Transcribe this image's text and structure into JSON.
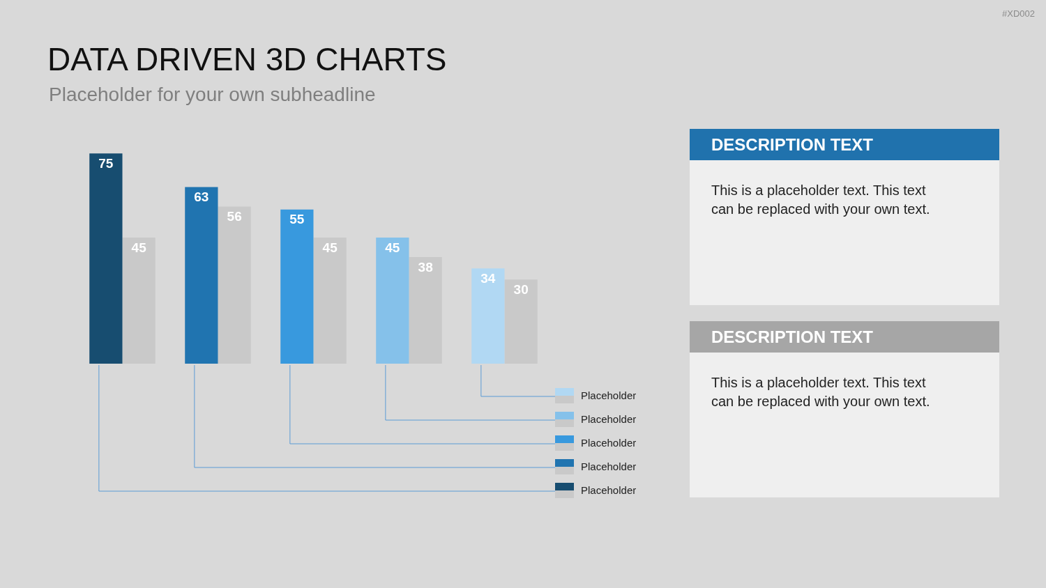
{
  "chart_data": {
    "type": "bar",
    "title": "DATA DRIVEN 3D CHARTS",
    "subtitle": "Placeholder for your own subheadline",
    "categories": [
      null,
      null,
      null,
      null,
      null
    ],
    "series": [
      {
        "values": [
          75,
          63,
          55,
          45,
          34
        ],
        "colors": [
          "#174d70",
          "#2074b0",
          "#3899de",
          "#85c1ea",
          "#b1d8f3"
        ]
      },
      {
        "values": [
          45,
          56,
          45,
          38,
          30
        ],
        "color": "#c9c9c9"
      }
    ],
    "data_labels": true,
    "legend": false,
    "annotations": [
      "#XD002",
      "DESCRIPTION TEXT",
      "This is a placeholder text. This text can be replaced with your own text.",
      "DESCRIPTION TEXT",
      "This is a placeholder text. This text can be replaced with your own text.",
      "Placeholder",
      "Placeholder",
      "Placeholder",
      "Placeholder",
      "Placeholder"
    ]
  }
}
